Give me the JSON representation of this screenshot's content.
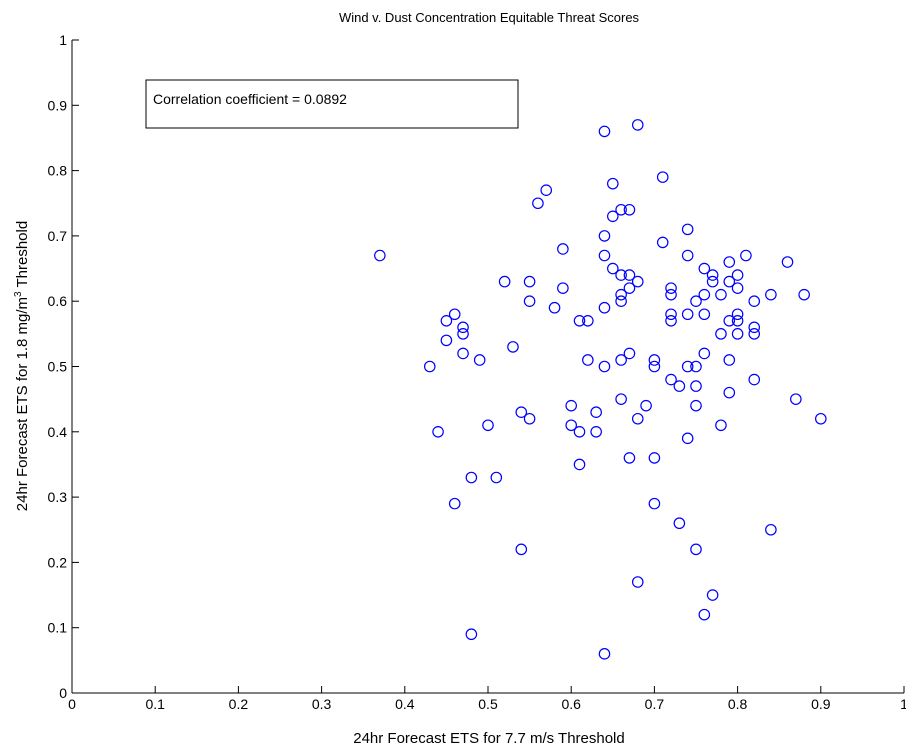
{
  "chart_data": {
    "type": "scatter",
    "title": "Wind v. Dust Concentration Equitable Threat Scores",
    "xlabel": "24hr Forecast ETS for 7.7 m/s Threshold",
    "ylabel_parts": {
      "before": "24hr Forecast ETS for 1.8 mg/m",
      "sup": "3",
      "after": " Threshold"
    },
    "xlim": [
      0,
      1
    ],
    "ylim": [
      0,
      1
    ],
    "xticks": [
      "0",
      "0.1",
      "0.2",
      "0.3",
      "0.4",
      "0.5",
      "0.6",
      "0.7",
      "0.8",
      "0.9",
      "1"
    ],
    "yticks": [
      "0",
      "0.1",
      "0.2",
      "0.3",
      "0.4",
      "0.5",
      "0.6",
      "0.7",
      "0.8",
      "0.9",
      "1"
    ],
    "grid": false,
    "annotation": "Correlation coefficient = 0.0892",
    "marker_color": "#0000ff",
    "points": [
      [
        0.37,
        0.67
      ],
      [
        0.43,
        0.5
      ],
      [
        0.44,
        0.4
      ],
      [
        0.45,
        0.57
      ],
      [
        0.45,
        0.54
      ],
      [
        0.46,
        0.58
      ],
      [
        0.46,
        0.29
      ],
      [
        0.47,
        0.56
      ],
      [
        0.47,
        0.55
      ],
      [
        0.47,
        0.52
      ],
      [
        0.48,
        0.33
      ],
      [
        0.48,
        0.09
      ],
      [
        0.49,
        0.51
      ],
      [
        0.5,
        0.41
      ],
      [
        0.51,
        0.33
      ],
      [
        0.52,
        0.63
      ],
      [
        0.53,
        0.53
      ],
      [
        0.54,
        0.43
      ],
      [
        0.54,
        0.22
      ],
      [
        0.55,
        0.63
      ],
      [
        0.55,
        0.6
      ],
      [
        0.55,
        0.42
      ],
      [
        0.56,
        0.75
      ],
      [
        0.57,
        0.77
      ],
      [
        0.58,
        0.59
      ],
      [
        0.59,
        0.68
      ],
      [
        0.59,
        0.62
      ],
      [
        0.6,
        0.44
      ],
      [
        0.6,
        0.41
      ],
      [
        0.61,
        0.57
      ],
      [
        0.61,
        0.4
      ],
      [
        0.61,
        0.35
      ],
      [
        0.62,
        0.57
      ],
      [
        0.62,
        0.51
      ],
      [
        0.63,
        0.43
      ],
      [
        0.63,
        0.4
      ],
      [
        0.64,
        0.86
      ],
      [
        0.64,
        0.7
      ],
      [
        0.64,
        0.67
      ],
      [
        0.64,
        0.59
      ],
      [
        0.64,
        0.5
      ],
      [
        0.64,
        0.06
      ],
      [
        0.65,
        0.78
      ],
      [
        0.65,
        0.73
      ],
      [
        0.65,
        0.65
      ],
      [
        0.66,
        0.74
      ],
      [
        0.66,
        0.64
      ],
      [
        0.66,
        0.61
      ],
      [
        0.66,
        0.6
      ],
      [
        0.66,
        0.51
      ],
      [
        0.66,
        0.45
      ],
      [
        0.67,
        0.74
      ],
      [
        0.67,
        0.64
      ],
      [
        0.67,
        0.62
      ],
      [
        0.67,
        0.52
      ],
      [
        0.67,
        0.36
      ],
      [
        0.68,
        0.87
      ],
      [
        0.68,
        0.63
      ],
      [
        0.68,
        0.42
      ],
      [
        0.68,
        0.17
      ],
      [
        0.69,
        0.44
      ],
      [
        0.7,
        0.51
      ],
      [
        0.7,
        0.5
      ],
      [
        0.7,
        0.36
      ],
      [
        0.7,
        0.29
      ],
      [
        0.71,
        0.79
      ],
      [
        0.71,
        0.69
      ],
      [
        0.72,
        0.62
      ],
      [
        0.72,
        0.61
      ],
      [
        0.72,
        0.58
      ],
      [
        0.72,
        0.57
      ],
      [
        0.72,
        0.48
      ],
      [
        0.73,
        0.47
      ],
      [
        0.73,
        0.26
      ],
      [
        0.74,
        0.71
      ],
      [
        0.74,
        0.67
      ],
      [
        0.74,
        0.58
      ],
      [
        0.74,
        0.5
      ],
      [
        0.74,
        0.39
      ],
      [
        0.75,
        0.6
      ],
      [
        0.75,
        0.5
      ],
      [
        0.75,
        0.47
      ],
      [
        0.75,
        0.44
      ],
      [
        0.75,
        0.22
      ],
      [
        0.76,
        0.65
      ],
      [
        0.76,
        0.61
      ],
      [
        0.76,
        0.58
      ],
      [
        0.76,
        0.52
      ],
      [
        0.76,
        0.12
      ],
      [
        0.77,
        0.64
      ],
      [
        0.77,
        0.63
      ],
      [
        0.77,
        0.15
      ],
      [
        0.78,
        0.61
      ],
      [
        0.78,
        0.55
      ],
      [
        0.78,
        0.41
      ],
      [
        0.79,
        0.66
      ],
      [
        0.79,
        0.63
      ],
      [
        0.79,
        0.57
      ],
      [
        0.79,
        0.51
      ],
      [
        0.79,
        0.46
      ],
      [
        0.8,
        0.64
      ],
      [
        0.8,
        0.62
      ],
      [
        0.8,
        0.58
      ],
      [
        0.8,
        0.57
      ],
      [
        0.8,
        0.55
      ],
      [
        0.81,
        0.67
      ],
      [
        0.82,
        0.6
      ],
      [
        0.82,
        0.56
      ],
      [
        0.82,
        0.55
      ],
      [
        0.82,
        0.48
      ],
      [
        0.84,
        0.61
      ],
      [
        0.84,
        0.25
      ],
      [
        0.86,
        0.66
      ],
      [
        0.87,
        0.45
      ],
      [
        0.88,
        0.61
      ],
      [
        0.9,
        0.42
      ]
    ]
  }
}
